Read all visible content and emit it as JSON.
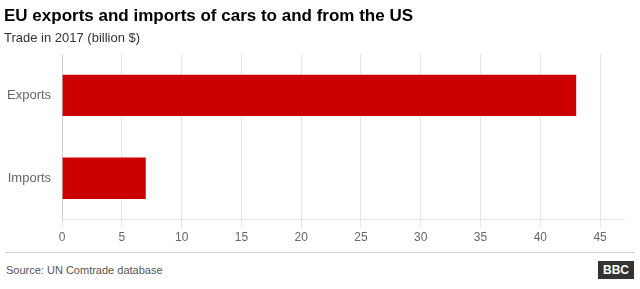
{
  "chart_data": {
    "type": "bar",
    "orientation": "horizontal",
    "title": "EU exports and imports of cars to and from the US",
    "subtitle": "Trade in 2017 (billion $)",
    "annotations": [
      "Source: UN Comtrade database",
      "BBC"
    ],
    "categories": [
      "Exports",
      "Imports"
    ],
    "values": [
      43,
      7
    ],
    "color": "#cc0000",
    "xlim": [
      0,
      47
    ],
    "xticks": [
      0,
      5,
      10,
      15,
      20,
      25,
      30,
      35,
      40,
      45
    ],
    "grid": true
  }
}
